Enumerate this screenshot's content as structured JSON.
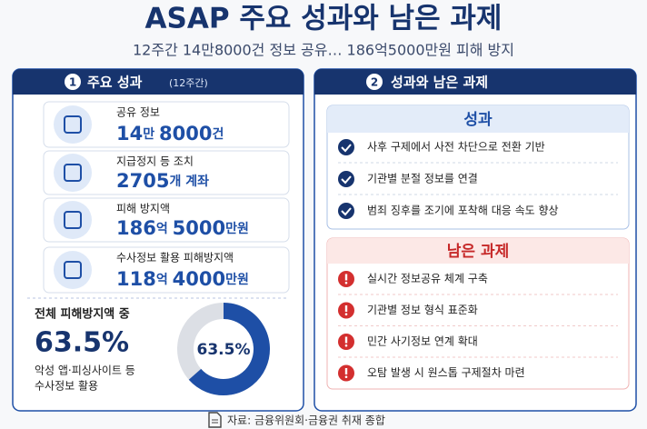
{
  "header": {
    "title": "ASAP 주요 성과와 남은 과제",
    "subtitle": "12주간 14만8000건 정보 공유…  186억5000만원 피해 방지"
  },
  "left": {
    "badge": "1",
    "title": "주요 성과",
    "title_note": "(12주간)",
    "stats": [
      {
        "label": "공유 정보",
        "value_parts": [
          "14",
          "만 ",
          "8000",
          "건"
        ]
      },
      {
        "label": "지급정지 등 조치",
        "value_parts": [
          "2705",
          "개 계좌"
        ]
      },
      {
        "label": "피해 방지액",
        "value_parts": [
          "186",
          "억 ",
          "5000",
          "만원"
        ]
      },
      {
        "label": "수사정보 활용 피해방지액",
        "value_parts": [
          "118",
          "억 ",
          "4000",
          "만원"
        ]
      }
    ],
    "share": {
      "label": "전체 피해방지액 중",
      "notes": [
        "악성 앱·피싱사이트 등",
        "수사정보 활용"
      ],
      "donut": {
        "value": 63.5,
        "label": "63.5%",
        "color": "#1e4fa6",
        "rest_color": "#dcdfe5"
      }
    }
  },
  "right": {
    "badge": "2",
    "title": "성과와 남은 과제",
    "achievements": {
      "title": "성과",
      "items": [
        "사후 구제에서 사전 차단으로 전환 기반",
        "기관별 분절 정보를 연결",
        "범죄 징후를 조기에 포착해 대응 속도 향상"
      ]
    },
    "remaining": {
      "title": "남은 과제",
      "items": [
        "실시간 정보공유 체계 구축",
        "기관별 정보 형식 표준화",
        "민간 사기정보 연계 확대",
        "오탐 발생 시 원스톱 구제절차 마련"
      ]
    }
  },
  "footer": {
    "source": "자료: 금융위원회·금융권 취재 종합"
  }
}
